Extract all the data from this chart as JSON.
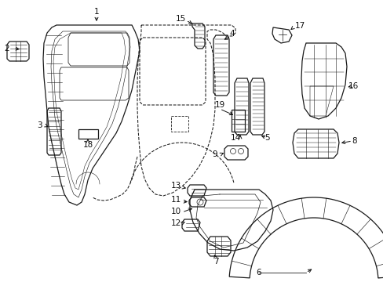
{
  "bg_color": "#ffffff",
  "figsize": [
    4.89,
    3.6
  ],
  "dpi": 100,
  "image_data": ""
}
